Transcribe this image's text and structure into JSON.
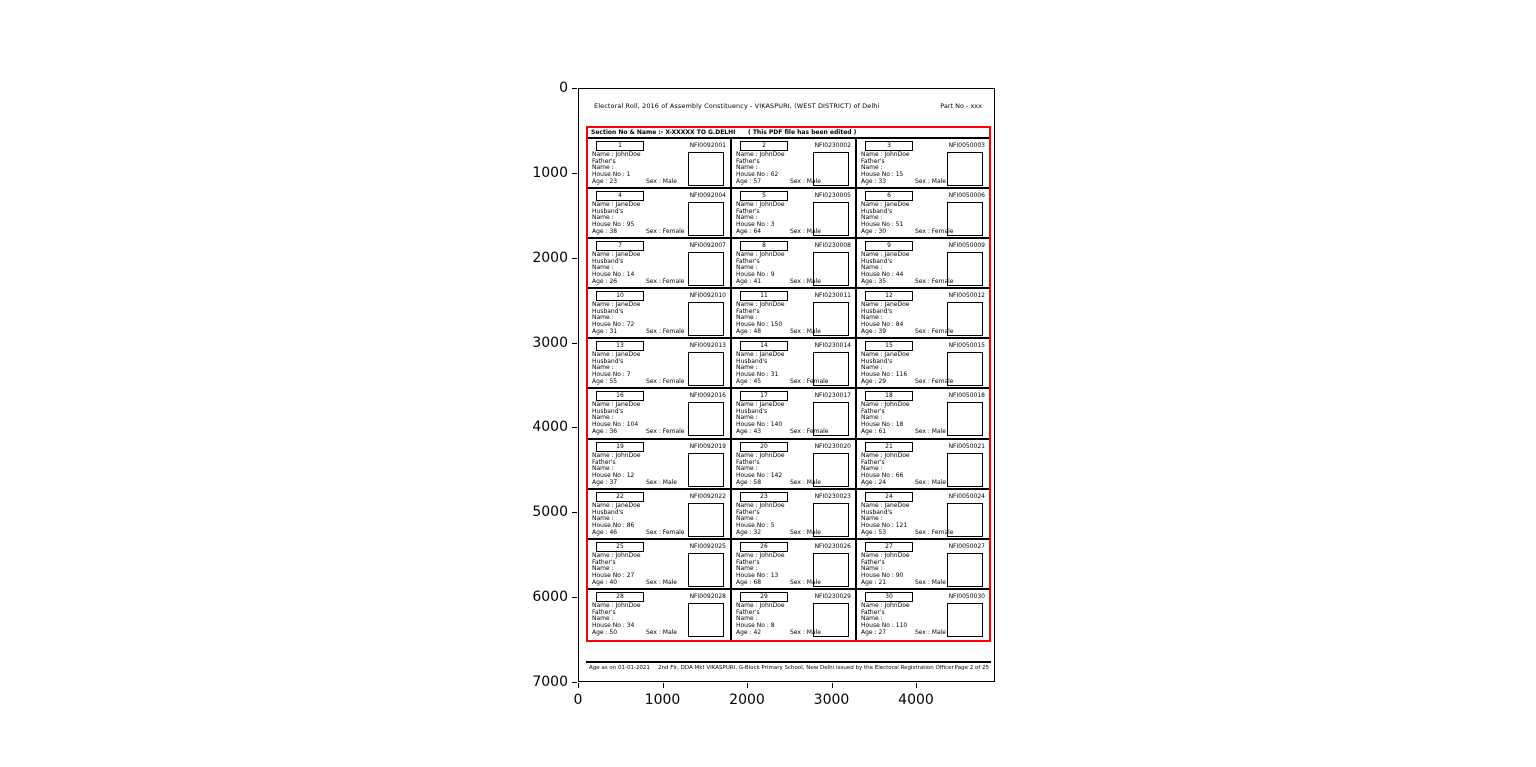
{
  "figure": {
    "x_ticks": [
      "0",
      "1000",
      "2000",
      "3000",
      "4000"
    ],
    "y_ticks": [
      "0",
      "1000",
      "2000",
      "3000",
      "4000",
      "5000",
      "6000",
      "7000"
    ]
  },
  "chart_data": {
    "type": "table",
    "title": "",
    "xlabel": "",
    "ylabel": "",
    "x_tick_labels": [
      0,
      1000,
      2000,
      3000,
      4000
    ],
    "y_tick_labels": [
      0,
      1000,
      2000,
      3000,
      4000,
      5000,
      6000,
      7000
    ],
    "x_range": [
      0,
      4930
    ],
    "y_range": [
      7000,
      0
    ],
    "grid": false,
    "legend": "none",
    "description": "Axes display a scanned electoral roll page image with a red box highlighting the voter grid (10 rows x 3 columns of voter cards)"
  },
  "colors": {
    "highlight_box": "#ff0000",
    "border": "#000000",
    "background": "#ffffff"
  },
  "document": {
    "header": {
      "title": "Electoral Roll, 2016 of Assembly Constituency - VIKASPURI, (WEST DISTRICT) of Delhi",
      "part_no": "Part No - xxx"
    },
    "section_header": {
      "label": "Section No & Name :- X-XXXXX TO G.DELHI",
      "edited_note": "( This PDF file has been edited )"
    },
    "field_labels": {
      "name": "Name :",
      "relation_line2": "Name :",
      "house": "House No :",
      "age": "Age :",
      "sex": "Sex :"
    },
    "footer": {
      "col1": "Age as on 01-01-2021",
      "col2": "2nd Flr, DDA Mkt VIKASPURI, G-Block Primary School, New Delhi",
      "col3": "Issued by the Electoral Registration Officer",
      "page": "Page 2 of 25"
    },
    "voters": [
      {
        "serial": "1",
        "id": "NFI0092001",
        "name": "JohnDoe",
        "relation": "Father's",
        "house": "1",
        "age": "23",
        "sex": "Male"
      },
      {
        "serial": "2",
        "id": "NFI0230002",
        "name": "JohnDoe",
        "relation": "Father's",
        "house": "62",
        "age": "57",
        "sex": "Male"
      },
      {
        "serial": "3",
        "id": "NFI0050003",
        "name": "JohnDoe",
        "relation": "Father's",
        "house": "15",
        "age": "33",
        "sex": "Male"
      },
      {
        "serial": "4",
        "id": "NFI0092004",
        "name": "JaneDoe",
        "relation": "Husband's",
        "house": "95",
        "age": "38",
        "sex": "Female"
      },
      {
        "serial": "5",
        "id": "NFI0230005",
        "name": "JohnDoe",
        "relation": "Father's",
        "house": "3",
        "age": "64",
        "sex": "Male"
      },
      {
        "serial": "6",
        "id": "NFI0050006",
        "name": "JaneDoe",
        "relation": "Husband's",
        "house": "51",
        "age": "30",
        "sex": "Female"
      },
      {
        "serial": "7",
        "id": "NFI0092007",
        "name": "JaneDoe",
        "relation": "Husband's",
        "house": "14",
        "age": "26",
        "sex": "Female"
      },
      {
        "serial": "8",
        "id": "NFI0230008",
        "name": "JohnDoe",
        "relation": "Father's",
        "house": "9",
        "age": "41",
        "sex": "Male"
      },
      {
        "serial": "9",
        "id": "NFI0050009",
        "name": "JaneDoe",
        "relation": "Husband's",
        "house": "44",
        "age": "35",
        "sex": "Female"
      },
      {
        "serial": "10",
        "id": "NFI0092010",
        "name": "JaneDoe",
        "relation": "Husband's",
        "house": "72",
        "age": "31",
        "sex": "Female"
      },
      {
        "serial": "11",
        "id": "NFI0230011",
        "name": "JohnDoe",
        "relation": "Father's",
        "house": "150",
        "age": "48",
        "sex": "Male"
      },
      {
        "serial": "12",
        "id": "NFI0050012",
        "name": "JaneDoe",
        "relation": "Husband's",
        "house": "84",
        "age": "39",
        "sex": "Female"
      },
      {
        "serial": "13",
        "id": "NFI0092013",
        "name": "JaneDoe",
        "relation": "Husband's",
        "house": "7",
        "age": "55",
        "sex": "Female"
      },
      {
        "serial": "14",
        "id": "NFI0230014",
        "name": "JaneDoe",
        "relation": "Husband's",
        "house": "31",
        "age": "45",
        "sex": "Female"
      },
      {
        "serial": "15",
        "id": "NFI0050015",
        "name": "JaneDoe",
        "relation": "Husband's",
        "house": "116",
        "age": "29",
        "sex": "Female"
      },
      {
        "serial": "16",
        "id": "NFI0092016",
        "name": "JaneDoe",
        "relation": "Husband's",
        "house": "104",
        "age": "36",
        "sex": "Female"
      },
      {
        "serial": "17",
        "id": "NFI0230017",
        "name": "JaneDoe",
        "relation": "Husband's",
        "house": "140",
        "age": "43",
        "sex": "Female"
      },
      {
        "serial": "18",
        "id": "NFI0050018",
        "name": "JohnDoe",
        "relation": "Father's",
        "house": "18",
        "age": "61",
        "sex": "Male"
      },
      {
        "serial": "19",
        "id": "NFI0092019",
        "name": "JohnDoe",
        "relation": "Father's",
        "house": "12",
        "age": "37",
        "sex": "Male"
      },
      {
        "serial": "20",
        "id": "NFI0230020",
        "name": "JohnDoe",
        "relation": "Father's",
        "house": "142",
        "age": "58",
        "sex": "Male"
      },
      {
        "serial": "21",
        "id": "NFI0050021",
        "name": "JohnDoe",
        "relation": "Father's",
        "house": "66",
        "age": "24",
        "sex": "Male"
      },
      {
        "serial": "22",
        "id": "NFI0092022",
        "name": "JaneDoe",
        "relation": "Husband's",
        "house": "86",
        "age": "46",
        "sex": "Female"
      },
      {
        "serial": "23",
        "id": "NFI0230023",
        "name": "JohnDoe",
        "relation": "Father's",
        "house": "5",
        "age": "32",
        "sex": "Male"
      },
      {
        "serial": "24",
        "id": "NFI0050024",
        "name": "JaneDoe",
        "relation": "Husband's",
        "house": "121",
        "age": "53",
        "sex": "Female"
      },
      {
        "serial": "25",
        "id": "NFI0092025",
        "name": "JohnDoe",
        "relation": "Father's",
        "house": "27",
        "age": "40",
        "sex": "Male"
      },
      {
        "serial": "26",
        "id": "NFI0230026",
        "name": "JohnDoe",
        "relation": "Father's",
        "house": "13",
        "age": "68",
        "sex": "Male"
      },
      {
        "serial": "27",
        "id": "NFI0050027",
        "name": "JohnDoe",
        "relation": "Father's",
        "house": "90",
        "age": "21",
        "sex": "Male"
      },
      {
        "serial": "28",
        "id": "NFI0092028",
        "name": "JohnDoe",
        "relation": "Father's",
        "house": "34",
        "age": "50",
        "sex": "Male"
      },
      {
        "serial": "29",
        "id": "NFI0230029",
        "name": "JohnDoe",
        "relation": "Father's",
        "house": "8",
        "age": "42",
        "sex": "Male"
      },
      {
        "serial": "30",
        "id": "NFI0050030",
        "name": "JohnDoe",
        "relation": "Father's",
        "house": "110",
        "age": "27",
        "sex": "Male"
      }
    ]
  }
}
